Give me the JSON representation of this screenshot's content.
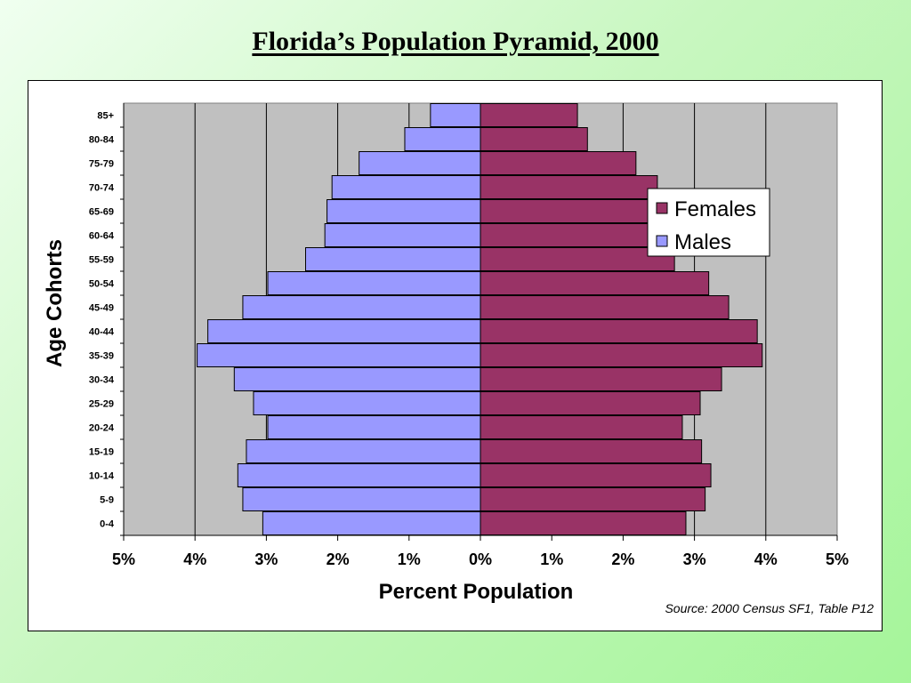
{
  "title": "Florida’s Population Pyramid, 2000",
  "source": "Source: 2000 Census SF1, Table P12",
  "colors": {
    "females": "#993366",
    "males": "#9999ff",
    "plot_bg": "#c0c0c0"
  },
  "chart_data": {
    "type": "bar",
    "orientation": "horizontal-pyramid",
    "xlabel": "Percent Population",
    "ylabel": "Age Cohorts",
    "xlim": [
      -5,
      5
    ],
    "x_tick_labels": [
      "5%",
      "4%",
      "3%",
      "2%",
      "1%",
      "0%",
      "1%",
      "2%",
      "3%",
      "4%",
      "5%"
    ],
    "legend_placement": "top-right",
    "grid": true,
    "categories": [
      "0-4",
      "5-9",
      "10-14",
      "15-19",
      "20-24",
      "25-29",
      "30-34",
      "35-39",
      "40-44",
      "45-49",
      "50-54",
      "55-59",
      "60-64",
      "65-69",
      "70-74",
      "75-79",
      "80-84",
      "85+"
    ],
    "series": [
      {
        "name": "Females",
        "values": [
          2.88,
          3.15,
          3.23,
          3.1,
          2.83,
          3.08,
          3.38,
          3.95,
          3.88,
          3.48,
          3.2,
          2.72,
          2.72,
          2.62,
          2.48,
          2.18,
          1.5,
          1.36
        ]
      },
      {
        "name": "Males",
        "values": [
          3.05,
          3.33,
          3.4,
          3.28,
          2.98,
          3.18,
          3.45,
          3.97,
          3.82,
          3.33,
          2.98,
          2.45,
          2.18,
          2.15,
          2.08,
          1.7,
          1.06,
          0.7
        ]
      }
    ]
  }
}
